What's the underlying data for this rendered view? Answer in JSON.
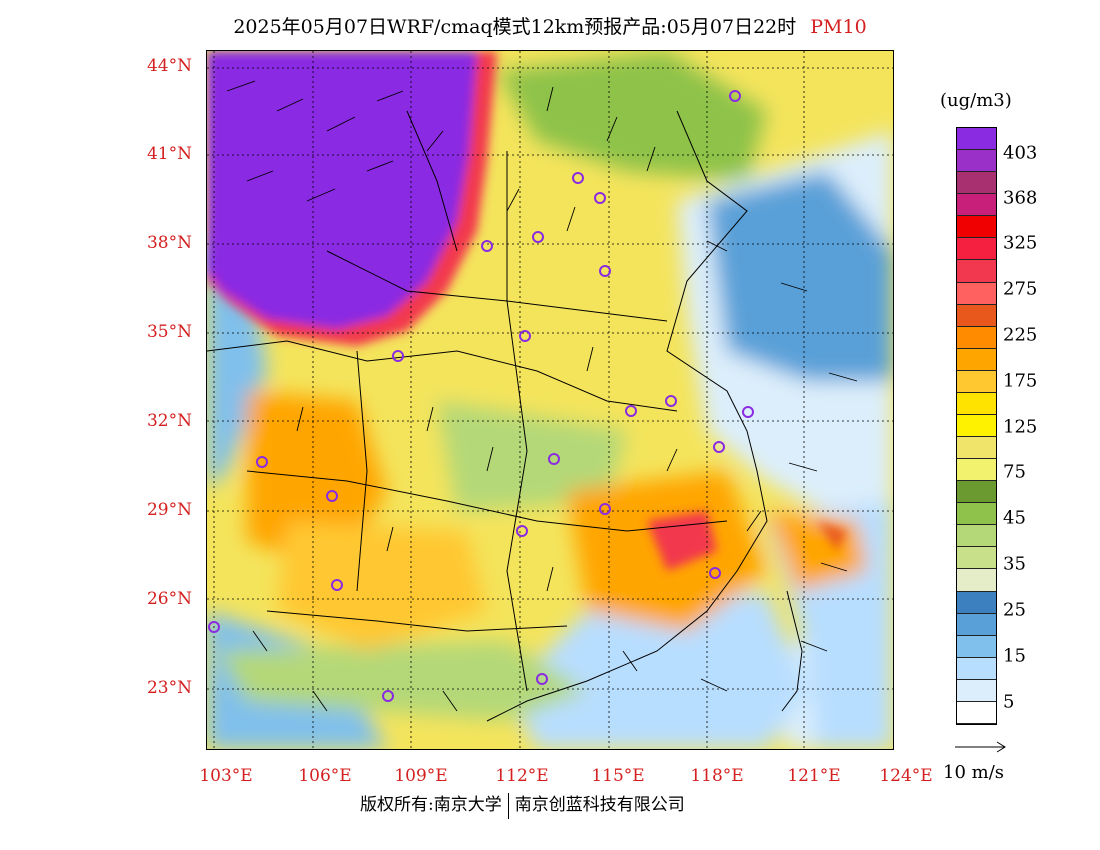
{
  "title": {
    "main": "2025年05月07日WRF/cmaq模式12km预报产品:05月07日22时",
    "variable": "PM10"
  },
  "axes": {
    "lat_labels": [
      "44°N",
      "41°N",
      "38°N",
      "35°N",
      "32°N",
      "29°N",
      "26°N",
      "23°N"
    ],
    "lon_labels": [
      "103°E",
      "106°E",
      "109°E",
      "112°E",
      "115°E",
      "118°E",
      "121°E",
      "124°E"
    ]
  },
  "colorbar": {
    "unit": "(ug/m3)",
    "labels": [
      "403",
      "368",
      "325",
      "275",
      "225",
      "175",
      "125",
      "75",
      "45",
      "35",
      "25",
      "15",
      "5"
    ],
    "colors": [
      "#8a2be2",
      "#9b30c8",
      "#a83070",
      "#c8207a",
      "#f00000",
      "#f51f40",
      "#f2384e",
      "#ff6060",
      "#e8581c",
      "#ff8c00",
      "#ffa500",
      "#ffc830",
      "#ffe300",
      "#fff200",
      "#f0e46a",
      "#f2f26e",
      "#6a9a30",
      "#8ec24a",
      "#b4d878",
      "#c8e08a",
      "#e4ecc8",
      "#3d80c0",
      "#5aa0d8",
      "#80c0ec",
      "#b8deff",
      "#dceefb",
      "#ffffff"
    ]
  },
  "wind_reference": {
    "label": "10 m/s"
  },
  "footer": {
    "copyright": "版权所有:南京大学",
    "company": "南京创蓝科技有限公司"
  },
  "map": {
    "extent": {
      "lon_min": 103,
      "lon_max": 124,
      "lat_min": 21,
      "lat_max": 44.5
    }
  }
}
